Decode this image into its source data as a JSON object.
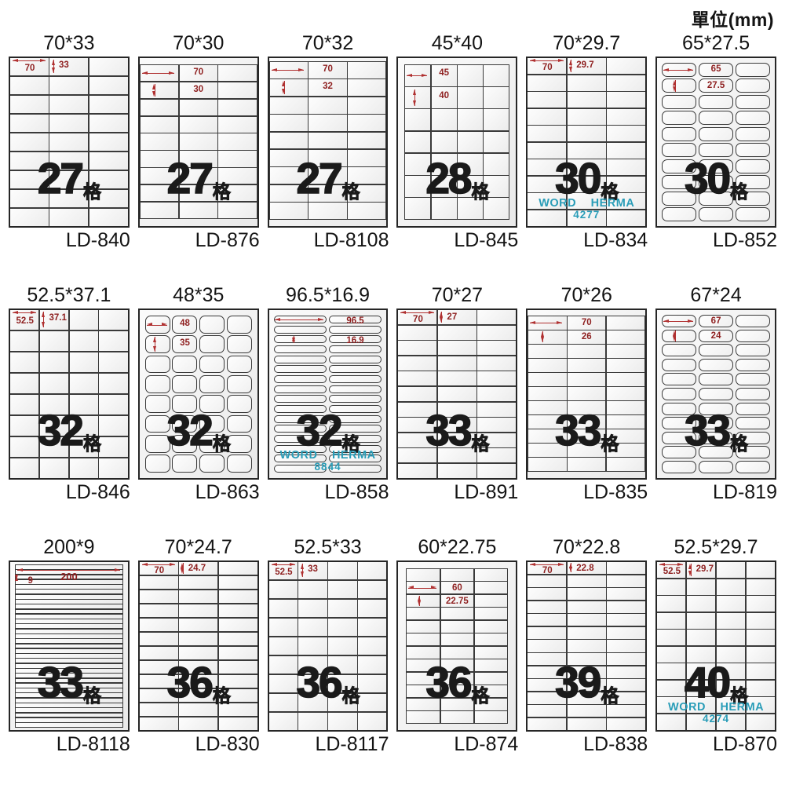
{
  "unit_label": "單位(mm)",
  "brand": "WORD HERMA",
  "grid_suffix": "格",
  "colors": {
    "dim": "#8e1f1f",
    "arrow": "#b03030",
    "teal": "#2a9db8",
    "line": "#3a3a3a"
  },
  "cards": [
    {
      "title": "70*33",
      "model": "LD-840",
      "count": "27",
      "cols": 3,
      "rows": 9,
      "dim_w": "70",
      "dim_h": "33",
      "annot": "A",
      "rounded": false,
      "margins": [
        0,
        0,
        0,
        0
      ],
      "herma": null
    },
    {
      "title": "70*30",
      "model": "LD-876",
      "count": "27",
      "cols": 3,
      "rows": 9,
      "dim_w": "70",
      "dim_h": "30",
      "annot": "B",
      "rounded": false,
      "margins": [
        8,
        0,
        9,
        0
      ],
      "herma": null
    },
    {
      "title": "70*32",
      "model": "LD-8108",
      "count": "27",
      "cols": 3,
      "rows": 9,
      "dim_w": "70",
      "dim_h": "32",
      "annot": "B",
      "rounded": false,
      "margins": [
        4,
        0,
        8,
        0
      ],
      "herma": null
    },
    {
      "title": "45*40",
      "model": "LD-845",
      "count": "28",
      "cols": 4,
      "rows": 7,
      "dim_w": "45",
      "dim_h": "40",
      "annot": "B",
      "rounded": false,
      "margins": [
        8,
        8,
        8,
        8
      ],
      "herma": null
    },
    {
      "title": "70*29.7",
      "model": "LD-834",
      "count": "30",
      "cols": 3,
      "rows": 10,
      "dim_w": "70",
      "dim_h": "29.7",
      "annot": "A",
      "rounded": false,
      "margins": [
        0,
        0,
        0,
        0
      ],
      "herma": "4277"
    },
    {
      "title": "65*27.5",
      "model": "LD-852",
      "count": "30",
      "cols": 3,
      "rows": 10,
      "dim_w": "65",
      "dim_h": "27.5",
      "annot": "B",
      "rounded": true,
      "margins": [
        5,
        5,
        5,
        5
      ],
      "herma": null
    },
    {
      "title": "52.5*37.1",
      "model": "LD-846",
      "count": "32",
      "cols": 4,
      "rows": 8,
      "dim_w": "52.5",
      "dim_h": "37.1",
      "annot": "A",
      "rounded": false,
      "margins": [
        0,
        0,
        0,
        0
      ],
      "herma": null
    },
    {
      "title": "48*35",
      "model": "LD-863",
      "count": "32",
      "cols": 4,
      "rows": 8,
      "dim_w": "48",
      "dim_h": "35",
      "annot": "B",
      "rounded": true,
      "margins": [
        6,
        6,
        6,
        6
      ],
      "herma": null
    },
    {
      "title": "96.5*16.9",
      "model": "LD-858",
      "count": "32",
      "cols": 2,
      "rows": 16,
      "dim_w": "96.5",
      "dim_h": "16.9",
      "annot": "B",
      "v_row": 2,
      "rounded": true,
      "margins": [
        6,
        5,
        6,
        5
      ],
      "herma": "8844"
    },
    {
      "title": "70*27",
      "model": "LD-891",
      "count": "33",
      "cols": 3,
      "rows": 11,
      "dim_w": "70",
      "dim_h": "27",
      "annot": "A",
      "rounded": false,
      "margins": [
        0,
        0,
        0,
        0
      ],
      "herma": null
    },
    {
      "title": "70*26",
      "model": "LD-835",
      "count": "33",
      "cols": 3,
      "rows": 11,
      "dim_w": "70",
      "dim_h": "26",
      "annot": "B",
      "rounded": false,
      "margins": [
        7,
        0,
        8,
        0
      ],
      "herma": null
    },
    {
      "title": "67*24",
      "model": "LD-819",
      "count": "33",
      "cols": 3,
      "rows": 11,
      "dim_w": "67",
      "dim_h": "24",
      "annot": "B",
      "rounded": true,
      "margins": [
        5,
        5,
        5,
        5
      ],
      "herma": null
    },
    {
      "title": "200*9",
      "model": "LD-8118",
      "count": "33",
      "cols": 1,
      "rows": 33,
      "dim_w": "200",
      "dim_h": "9",
      "annot": "W",
      "rounded": false,
      "margins": [
        3,
        6,
        3,
        6
      ],
      "herma": null
    },
    {
      "title": "70*24.7",
      "model": "LD-830",
      "count": "36",
      "cols": 3,
      "rows": 12,
      "dim_w": "70",
      "dim_h": "24.7",
      "annot": "A",
      "rounded": false,
      "margins": [
        0,
        0,
        0,
        0
      ],
      "herma": null
    },
    {
      "title": "52.5*33",
      "model": "LD-8117",
      "count": "36",
      "cols": 4,
      "rows": 9,
      "dim_w": "52.5",
      "dim_h": "33",
      "annot": "A",
      "rounded": false,
      "margins": [
        0,
        0,
        0,
        0
      ],
      "herma": null
    },
    {
      "title": "60*22.75",
      "model": "LD-874",
      "count": "36",
      "cols": 3,
      "rows": 12,
      "dim_w": "60",
      "dim_h": "22.75",
      "annot": "B",
      "h_row": 1,
      "v_row": 2,
      "rounded": false,
      "margins": [
        8,
        10,
        8,
        10
      ],
      "herma": null
    },
    {
      "title": "70*22.8",
      "model": "LD-838",
      "count": "39",
      "cols": 3,
      "rows": 13,
      "dim_w": "70",
      "dim_h": "22.8",
      "annot": "A",
      "rounded": false,
      "margins": [
        0,
        0,
        0,
        0
      ],
      "herma": null
    },
    {
      "title": "52.5*29.7",
      "model": "LD-870",
      "count": "40",
      "cols": 4,
      "rows": 10,
      "dim_w": "52.5",
      "dim_h": "29.7",
      "annot": "A",
      "rounded": false,
      "margins": [
        0,
        0,
        0,
        0
      ],
      "herma": "4274"
    }
  ]
}
